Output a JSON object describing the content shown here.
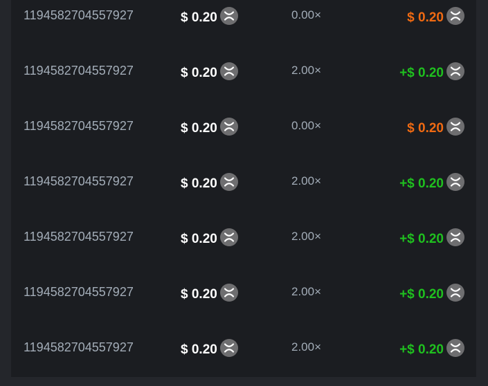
{
  "colors": {
    "loss": "#f06a12",
    "win": "#1fc01f",
    "coin_icon": "xrp-coin-icon"
  },
  "rows": [
    {
      "id": "1194582704557927",
      "bet": "$ 0.20",
      "multiplier": "0.00×",
      "payout": "$ 0.20",
      "outcome": "loss"
    },
    {
      "id": "1194582704557927",
      "bet": "$ 0.20",
      "multiplier": "2.00×",
      "payout": "+$ 0.20",
      "outcome": "win"
    },
    {
      "id": "1194582704557927",
      "bet": "$ 0.20",
      "multiplier": "0.00×",
      "payout": "$ 0.20",
      "outcome": "loss"
    },
    {
      "id": "1194582704557927",
      "bet": "$ 0.20",
      "multiplier": "2.00×",
      "payout": "+$ 0.20",
      "outcome": "win"
    },
    {
      "id": "1194582704557927",
      "bet": "$ 0.20",
      "multiplier": "2.00×",
      "payout": "+$ 0.20",
      "outcome": "win"
    },
    {
      "id": "1194582704557927",
      "bet": "$ 0.20",
      "multiplier": "2.00×",
      "payout": "+$ 0.20",
      "outcome": "win"
    },
    {
      "id": "1194582704557927",
      "bet": "$ 0.20",
      "multiplier": "2.00×",
      "payout": "+$ 0.20",
      "outcome": "win"
    }
  ]
}
